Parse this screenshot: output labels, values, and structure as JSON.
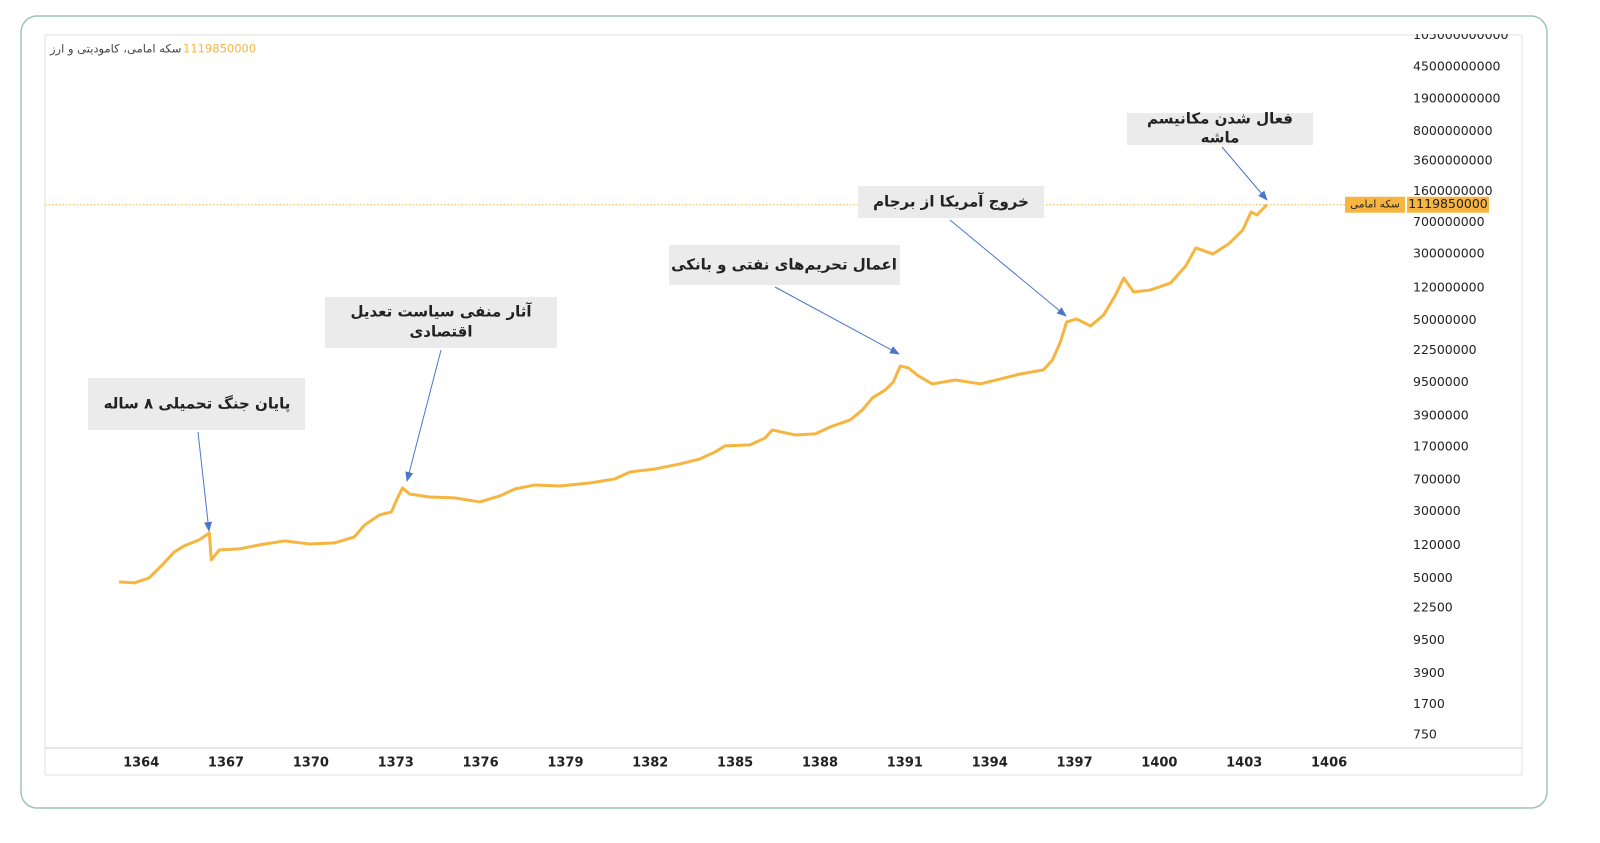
{
  "chart_data": {
    "type": "line",
    "legend_title": "سکه امامی، کامودیتی و ارز",
    "log_scale": true,
    "grid": false,
    "x": [
      1363.22,
      1363.75,
      1364.28,
      1364.71,
      1365.17,
      1365.52,
      1366.05,
      1366.41,
      1366.48,
      1366.76,
      1367.47,
      1368.18,
      1369.06,
      1369.95,
      1370.83,
      1371.54,
      1371.9,
      1372.43,
      1372.85,
      1373.03,
      1373.24,
      1373.49,
      1374.2,
      1375.08,
      1375.97,
      1376.68,
      1377.21,
      1377.92,
      1378.8,
      1379.86,
      1380.75,
      1381.28,
      1382.17,
      1383.05,
      1383.76,
      1384.29,
      1384.64,
      1385.53,
      1386.06,
      1386.31,
      1387.12,
      1387.83,
      1388.36,
      1389.07,
      1389.5,
      1389.85,
      1390.31,
      1390.59,
      1390.84,
      1391.13,
      1391.48,
      1391.97,
      1392.79,
      1393.67,
      1394.38,
      1395.09,
      1395.9,
      1396.22,
      1396.5,
      1396.72,
      1397.07,
      1397.57,
      1398.03,
      1398.45,
      1398.74,
      1399.09,
      1399.69,
      1400.4,
      1400.93,
      1401.29,
      1401.89,
      1402.45,
      1402.95,
      1403.24,
      1403.45,
      1403.8
    ],
    "series": [
      {
        "name": "سکه امامی",
        "color": "#f6b540",
        "values": [
          45500,
          44300,
          50600,
          69800,
          101600,
          119400,
          140300,
          169000,
          82000,
          107200,
          110200,
          122700,
          136500,
          125900,
          129400,
          152100,
          209400,
          274200,
          297200,
          409300,
          564900,
          480800,
          443600,
          432500,
          388200,
          456000,
          549500,
          612300,
          595700,
          645700,
          719500,
          867000,
          939700,
          1076000,
          1230000,
          1483000,
          1742000,
          1791000,
          2158000,
          2673000,
          2339000,
          2404000,
          2897000,
          3499000,
          4571000,
          6310000,
          7816000,
          9683000,
          14860000,
          14090000,
          11380000,
          9183000,
          10210000,
          9183000,
          10500000,
          11990000,
          13370000,
          17460000,
          28310000,
          48420000,
          52360000,
          43450000,
          58340000,
          99770000,
          157400000,
          108100000,
          114000000,
          137700000,
          216800000,
          351600000,
          299200000,
          391700000,
          570200000,
          922600000,
          851100000,
          1119850000
        ]
      }
    ],
    "xlim": [
      1360.6,
      1407.8
    ],
    "xticks": [
      1364,
      1367,
      1370,
      1373,
      1376,
      1379,
      1382,
      1385,
      1388,
      1391,
      1394,
      1397,
      1400,
      1403,
      1406
    ],
    "ylim": [
      530,
      106000000000
    ],
    "yticks": [
      750,
      1700,
      3900,
      9500,
      22500,
      50000,
      120000,
      300000,
      700000,
      1700000,
      3900000,
      9500000,
      22500000,
      50000000,
      120000000,
      300000000,
      700000000,
      1600000000,
      3600000000,
      8000000000,
      19000000000,
      45000000000,
      105000000000
    ],
    "annotations": [
      {
        "lines": [
          "پایان جنگ تحمیلی ۸ ساله"
        ]
      },
      {
        "lines": [
          "آثار منفی سیاست تعدیل",
          "اقتصادی"
        ]
      },
      {
        "lines": [
          "اعمال تحریم‌های نفتی و بانکی"
        ]
      },
      {
        "lines": [
          "خروج آمریکا از برجام"
        ]
      },
      {
        "lines": [
          "فعال شدن مکانیسم",
          "ماشه"
        ]
      }
    ]
  }
}
